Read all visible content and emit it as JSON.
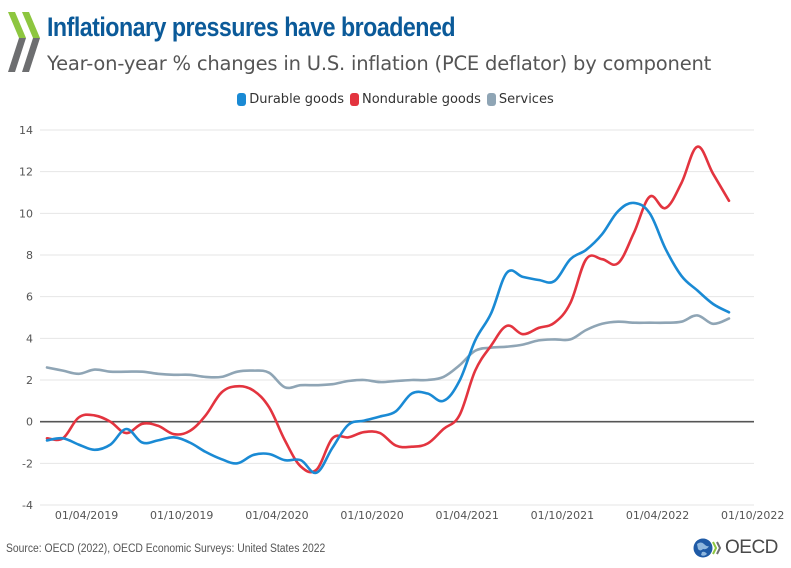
{
  "header": {
    "title": "Inflationary pressures have broadened",
    "subtitle": "Year-on-year % changes in U.S. inflation (PCE deflator) by component"
  },
  "footer": {
    "source": "Source: OECD (2022), OECD Economic Surveys: United States 2022",
    "logo_text": "OECD"
  },
  "colors": {
    "title": "#0b5a99",
    "durable": "#1a8ad4",
    "nondurable": "#e3343f",
    "services": "#8fa5b5",
    "zero_line": "#555555",
    "grid": "#e6e6e6",
    "logo_green": "#8dc63f",
    "logo_grey": "#6d6e70"
  },
  "chart_data": {
    "type": "line",
    "title": "Inflationary pressures have broadened",
    "subtitle": "Year-on-year % changes in U.S. inflation (PCE deflator) by component",
    "xlabel": "",
    "ylabel": "",
    "x_start": "2019-01",
    "x_frequency": "monthly",
    "x_ticks": [
      "01/04/2019",
      "01/10/2019",
      "01/04/2020",
      "01/10/2020",
      "01/04/2021",
      "01/10/2021",
      "01/04/2022",
      "01/10/2022"
    ],
    "x_range": [
      "2019-01",
      "2022-10"
    ],
    "ylim": [
      -4,
      14
    ],
    "y_ticks": [
      -4,
      -2,
      0,
      2,
      4,
      6,
      8,
      10,
      12,
      14
    ],
    "grid": true,
    "legend": "top-center",
    "x": [
      "2019-01",
      "2019-02",
      "2019-03",
      "2019-04",
      "2019-05",
      "2019-06",
      "2019-07",
      "2019-08",
      "2019-09",
      "2019-10",
      "2019-11",
      "2019-12",
      "2020-01",
      "2020-02",
      "2020-03",
      "2020-04",
      "2020-05",
      "2020-06",
      "2020-07",
      "2020-08",
      "2020-09",
      "2020-10",
      "2020-11",
      "2020-12",
      "2021-01",
      "2021-02",
      "2021-03",
      "2021-04",
      "2021-05",
      "2021-06",
      "2021-07",
      "2021-08",
      "2021-09",
      "2021-10",
      "2021-11",
      "2021-12",
      "2022-01",
      "2022-02",
      "2022-03",
      "2022-04",
      "2022-05",
      "2022-06",
      "2022-07",
      "2022-08"
    ],
    "series": [
      {
        "name": "Durable goods",
        "key": "durable",
        "values": [
          -0.9,
          -0.8,
          -1.1,
          -1.35,
          -1.1,
          -0.35,
          -1.0,
          -0.9,
          -0.75,
          -1.0,
          -1.45,
          -1.8,
          -2.0,
          -1.6,
          -1.55,
          -1.85,
          -1.85,
          -2.45,
          -1.25,
          -0.15,
          0.05,
          0.25,
          0.5,
          1.35,
          1.35,
          1.0,
          1.95,
          3.9,
          5.2,
          7.15,
          6.95,
          6.8,
          6.75,
          7.8,
          8.25,
          9.0,
          10.1,
          10.5,
          10.0,
          8.3,
          7.0,
          6.3,
          5.65,
          5.25
        ]
      },
      {
        "name": "Nondurable goods",
        "key": "nondurable",
        "values": [
          -0.8,
          -0.8,
          0.2,
          0.3,
          0.0,
          -0.55,
          -0.1,
          -0.2,
          -0.6,
          -0.45,
          0.3,
          1.4,
          1.7,
          1.5,
          0.7,
          -0.9,
          -2.15,
          -2.3,
          -0.8,
          -0.75,
          -0.5,
          -0.55,
          -1.15,
          -1.2,
          -1.05,
          -0.35,
          0.3,
          2.45,
          3.65,
          4.6,
          4.2,
          4.5,
          4.75,
          5.7,
          7.8,
          7.8,
          7.6,
          9.05,
          10.8,
          10.25,
          11.45,
          13.2,
          11.9,
          10.6
        ]
      },
      {
        "name": "Services",
        "key": "services",
        "values": [
          2.6,
          2.45,
          2.3,
          2.5,
          2.4,
          2.4,
          2.4,
          2.3,
          2.25,
          2.25,
          2.15,
          2.15,
          2.4,
          2.45,
          2.35,
          1.65,
          1.75,
          1.75,
          1.8,
          1.95,
          2.0,
          1.9,
          1.95,
          2.0,
          2.0,
          2.15,
          2.7,
          3.4,
          3.55,
          3.6,
          3.7,
          3.9,
          3.95,
          3.95,
          4.4,
          4.7,
          4.8,
          4.75,
          4.75,
          4.75,
          4.8,
          5.1,
          4.7,
          4.95
        ]
      }
    ]
  }
}
